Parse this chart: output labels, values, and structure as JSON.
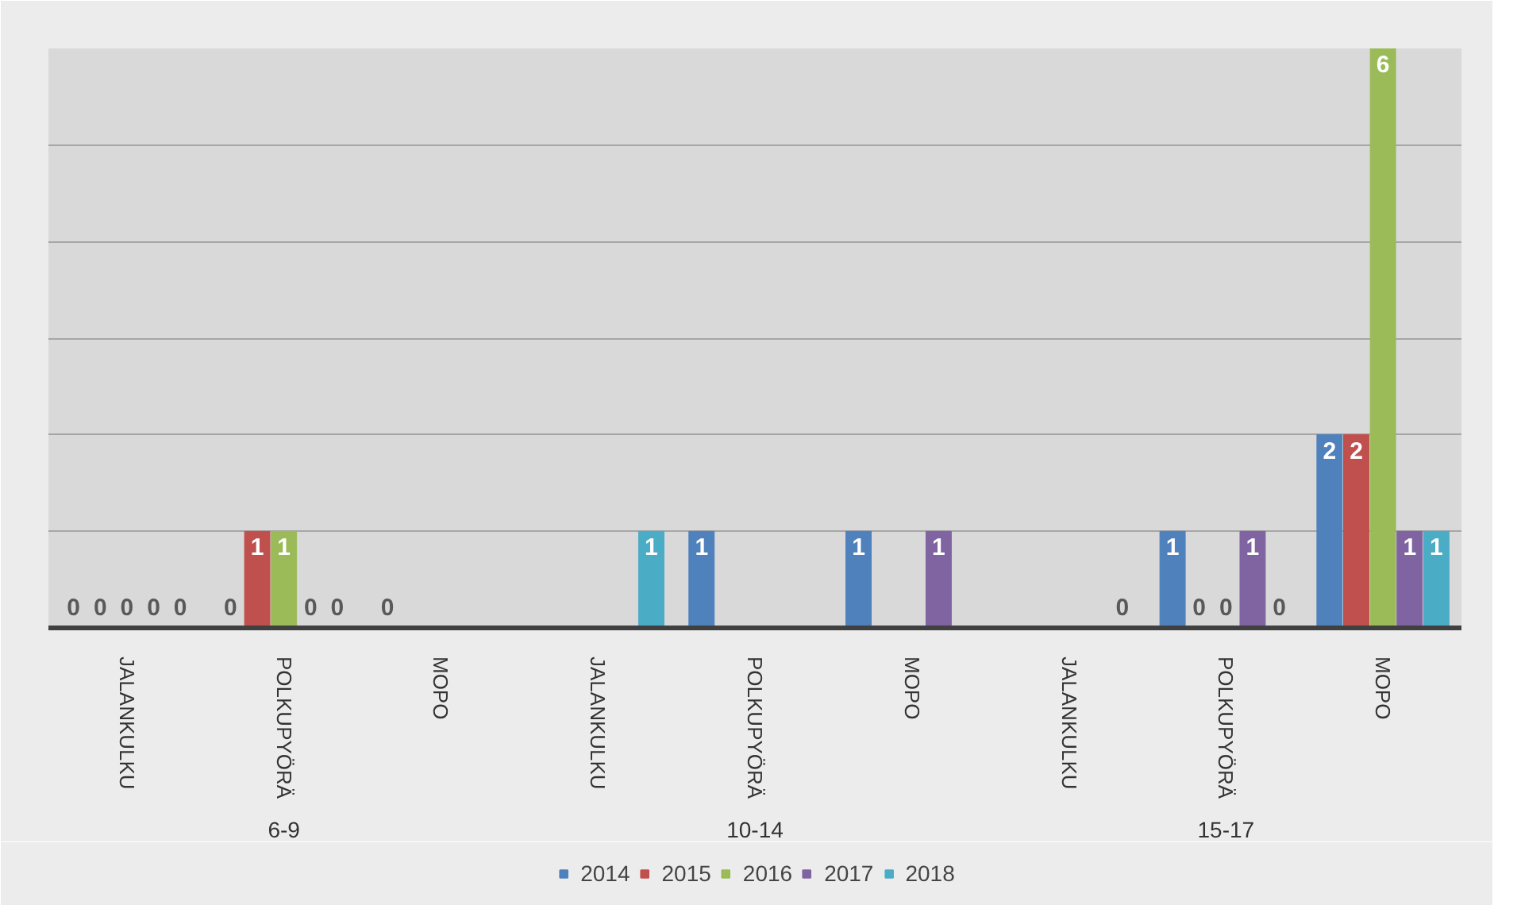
{
  "chart_data": {
    "type": "bar",
    "categories": [
      "JALANKULKU",
      "POLKUPYÖRÄ",
      "MOPO",
      "JALANKULKU",
      "POLKUPYÖRÄ",
      "MOPO",
      "JALANKULKU",
      "POLKUPYÖRÄ",
      "MOPO"
    ],
    "annotations": [
      "6-9",
      "10-14",
      "15-17"
    ],
    "series": [
      {
        "name": "2014",
        "color": "#4f81bd",
        "values": [
          0,
          0,
          0,
          null,
          1,
          1,
          null,
          1,
          2
        ]
      },
      {
        "name": "2015",
        "color": "#c0504d",
        "values": [
          0,
          1,
          null,
          null,
          null,
          null,
          null,
          0,
          2
        ]
      },
      {
        "name": "2016",
        "color": "#9bbb59",
        "values": [
          0,
          1,
          null,
          null,
          null,
          null,
          null,
          0,
          6
        ]
      },
      {
        "name": "2017",
        "color": "#8064a2",
        "values": [
          0,
          0,
          null,
          null,
          null,
          1,
          null,
          1,
          1
        ]
      },
      {
        "name": "2018",
        "color": "#4bacc6",
        "values": [
          0,
          0,
          null,
          1,
          null,
          null,
          0,
          0,
          1
        ]
      }
    ],
    "tick_labels": "x",
    "grid": "y",
    "data_labels": true,
    "legend": "bottom"
  }
}
